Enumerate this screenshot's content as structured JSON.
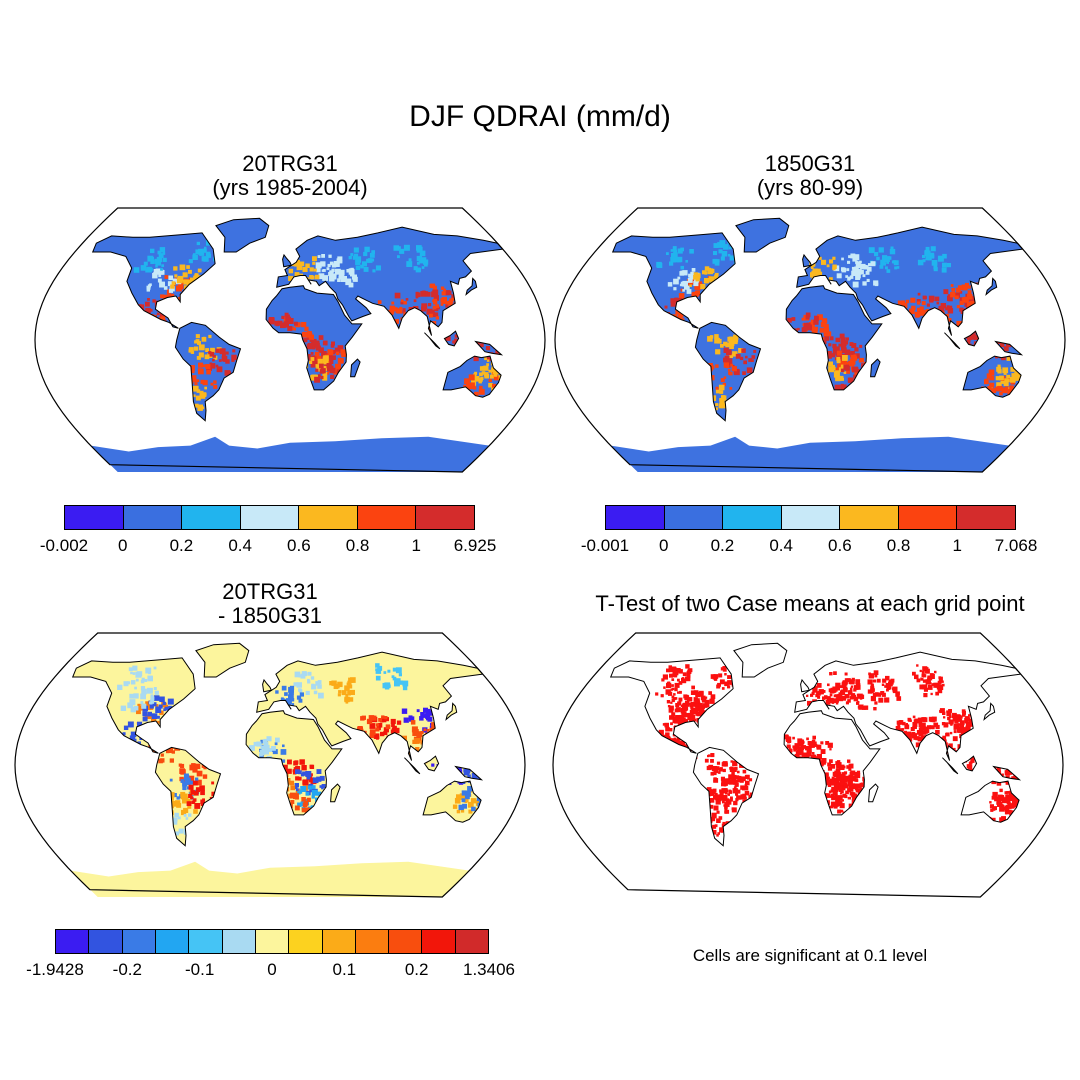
{
  "title": "DJF QDRAI (mm/d)",
  "panels": {
    "tl": {
      "title_line1": "20TRG31",
      "title_line2": "(yrs 1985-2004)"
    },
    "tr": {
      "title_line1": "1850G31",
      "title_line2": "(yrs 80-99)"
    },
    "bl": {
      "title_line1": "20TRG31",
      "title_line2": "- 1850G31"
    },
    "br": {
      "title_line1": "T-Test of two Case means at each grid point"
    }
  },
  "colorbars": {
    "tl": {
      "colors": [
        "#3b1cf2",
        "#3a6fe0",
        "#21b4ee",
        "#c8e9f8",
        "#fbb81f",
        "#fb4310",
        "#d42c2c"
      ],
      "labels": [
        "-0.002",
        "0",
        "0.2",
        "0.4",
        "0.6",
        "0.8",
        "1",
        "6.925"
      ]
    },
    "tr": {
      "colors": [
        "#3b1cf2",
        "#3a6fe0",
        "#21b4ee",
        "#c8e9f8",
        "#fbb81f",
        "#fb4310",
        "#d42c2c"
      ],
      "labels": [
        "-0.001",
        "0",
        "0.2",
        "0.4",
        "0.6",
        "0.8",
        "1",
        "7.068"
      ]
    },
    "bl": {
      "colors": [
        "#3b1cf2",
        "#3254e0",
        "#3a7be6",
        "#22a6f2",
        "#45c4f5",
        "#a9daf2",
        "#fcf59d",
        "#fcd21f",
        "#fbab18",
        "#fb7d10",
        "#f84e0e",
        "#f2160a",
        "#d12a2a"
      ],
      "labels": [
        "-1.9428",
        "-0.2",
        "-0.1",
        "0",
        "0.1",
        "0.2",
        "1.3406"
      ]
    }
  },
  "note": "Cells are significant at 0.1 level",
  "map_colors": {
    "tl_land": "#3e72e0",
    "tr_land": "#3e72e0",
    "bl_land": "#fcf59d",
    "br_land": "#ffffff",
    "significant": "#fb1010"
  }
}
